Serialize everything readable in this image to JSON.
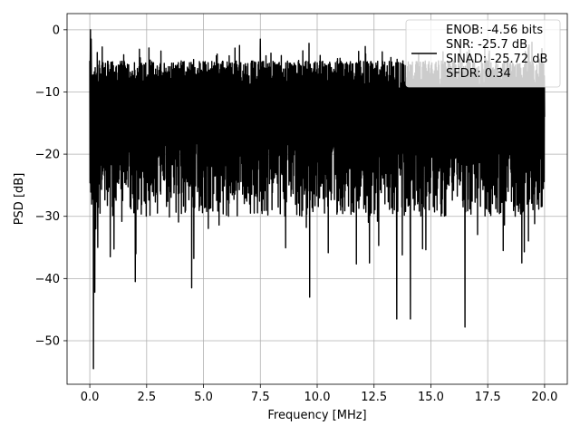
{
  "chart_data": {
    "type": "line",
    "title": "",
    "xlabel": "Frequency [MHz]",
    "ylabel": "PSD [dB]",
    "xlim": [
      -1.0,
      21.0
    ],
    "ylim": [
      -57.0,
      2.6
    ],
    "xticks": [
      0.0,
      2.5,
      5.0,
      7.5,
      10.0,
      12.5,
      15.0,
      17.5,
      20.0
    ],
    "xtick_labels": [
      "0.0",
      "2.5",
      "5.0",
      "7.5",
      "10.0",
      "12.5",
      "15.0",
      "17.5",
      "20.0"
    ],
    "yticks": [
      0,
      -10,
      -20,
      -30,
      -40,
      -50
    ],
    "ytick_labels": [
      "0",
      "−10",
      "−20",
      "−30",
      "−40",
      "−50"
    ],
    "grid": true,
    "legend_position": "top-right",
    "series": [
      {
        "name": "ENOB: -4.56 bits\nSNR: -25.7 dB\nSINAD: -25.72 dB\nSFDR: 0.34",
        "legend_lines": [
          "ENOB: -4.56 bits",
          "SNR: -25.7 dB",
          "SINAD: -25.72 dB",
          "SFDR: 0.34"
        ],
        "color": "#000000",
        "x_range": [
          0.0,
          20.0
        ],
        "noise_band_upper_db": [
          -5,
          -10
        ],
        "noise_band_lower_db": [
          -18,
          -30
        ],
        "x": [
          0.0,
          0.03,
          0.06,
          0.12,
          0.16,
          0.22,
          0.35,
          0.45,
          0.9,
          2.0,
          4.48,
          5.0,
          7.5,
          9.67,
          12.3,
          13.5,
          14.1,
          16.5,
          19.0,
          20.0
        ],
        "y": [
          -5,
          0,
          -1.5,
          -15,
          -54.5,
          -42.2,
          -35,
          -29.5,
          -36.5,
          -40.5,
          -41.5,
          -21,
          -1.5,
          -43,
          -37.5,
          -46.5,
          -46.5,
          -47.8,
          -37.5,
          -14
        ]
      }
    ]
  }
}
